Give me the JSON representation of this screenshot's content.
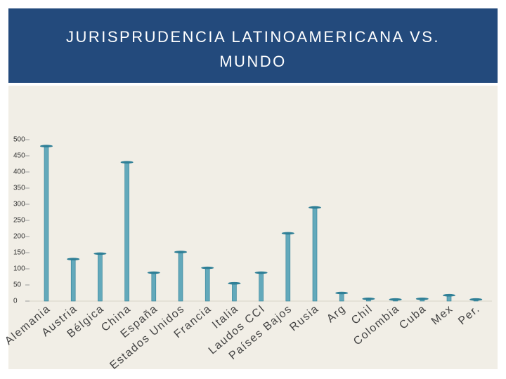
{
  "chart_data": {
    "type": "bar",
    "title": [
      "JURISPRUDENCIA LATINOAMERICANA VS.",
      "MUNDO"
    ],
    "categories": [
      "Alemania",
      "Austria",
      "Bélgica",
      "China",
      "España",
      "Estados Unidos",
      "Francia",
      "Italia",
      "Laudos CCI",
      "Países Bajos",
      "Rusia",
      "Arg",
      "Chil",
      "Colombia",
      "Cuba",
      "Mex",
      "Per."
    ],
    "values": [
      480,
      130,
      147,
      430,
      88,
      152,
      103,
      55,
      88,
      210,
      290,
      25,
      7,
      5,
      7,
      18,
      5
    ],
    "color": "#4a9cb3",
    "ylim": [
      0,
      500
    ],
    "yticks": [
      0,
      50,
      100,
      150,
      200,
      250,
      300,
      350,
      400,
      450,
      500
    ]
  }
}
